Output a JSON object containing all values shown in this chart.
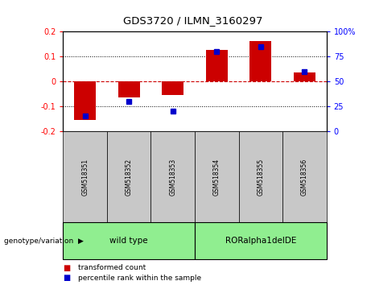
{
  "title": "GDS3720 / ILMN_3160297",
  "samples": [
    "GSM518351",
    "GSM518352",
    "GSM518353",
    "GSM518354",
    "GSM518355",
    "GSM518356"
  ],
  "red_values": [
    -0.155,
    -0.065,
    -0.055,
    0.125,
    0.16,
    0.035
  ],
  "blue_values_pct": [
    15,
    30,
    20,
    80,
    85,
    60
  ],
  "ylim_left": [
    -0.2,
    0.2
  ],
  "ylim_right": [
    0,
    100
  ],
  "left_yticks": [
    -0.2,
    -0.1,
    0,
    0.1,
    0.2
  ],
  "right_yticks": [
    0,
    25,
    50,
    75,
    100
  ],
  "bar_color": "#CC0000",
  "dot_color": "#0000CC",
  "zero_line_color": "#CC0000",
  "bg_color": "white",
  "plot_bg": "white",
  "tick_box_color": "#C8C8C8",
  "group_box_color": "#90EE90",
  "legend_red_label": "transformed count",
  "legend_blue_label": "percentile rank within the sample",
  "genotype_label": "genotype/variation"
}
